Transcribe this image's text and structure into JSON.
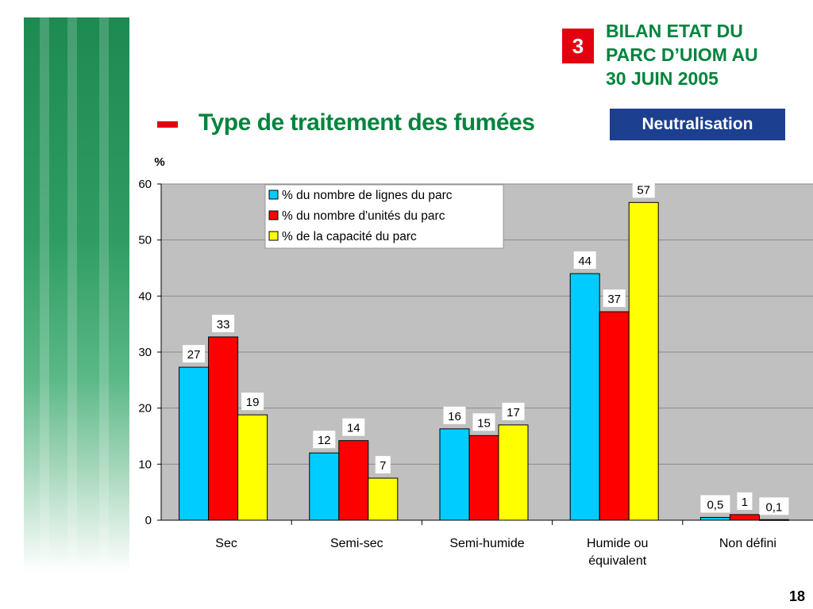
{
  "header": {
    "section_number": "3",
    "section_title_lines": [
      "BILAN ETAT DU",
      "PARC D’UIOM AU",
      "30 JUIN 2005"
    ],
    "page_title": "Type de traitement des fumées",
    "badge": "Neutralisation",
    "page_number": "18"
  },
  "colors": {
    "green": "#00843d",
    "red_accent": "#e3000f",
    "badge_blue": "#1c3f8f",
    "plot_bg": "#c0c0c0"
  },
  "chart_data": {
    "type": "bar",
    "ylabel": "%",
    "ylim": [
      0,
      60
    ],
    "yticks": [
      0,
      10,
      20,
      30,
      40,
      50,
      60
    ],
    "grid": true,
    "legend_position": "top-center",
    "categories": [
      "Sec",
      "Semi-sec",
      "Semi-humide",
      "Humide ou|équivalent",
      "Non défini"
    ],
    "series": [
      {
        "name": "% du nombre de lignes du parc",
        "color": "#00ccff",
        "values": [
          27.3,
          12,
          16.3,
          44,
          0.5
        ],
        "labels": [
          "27",
          "12",
          "16",
          "44",
          "0,5"
        ]
      },
      {
        "name": "% du nombre d'unités du parc",
        "color": "#ff0000",
        "values": [
          32.7,
          14.2,
          15.1,
          37.2,
          1
        ],
        "labels": [
          "33",
          "14",
          "15",
          "37",
          "1"
        ]
      },
      {
        "name": "% de la capacité du parc",
        "color": "#ffff00",
        "values": [
          18.8,
          7.5,
          17,
          56.7,
          0.1
        ],
        "labels": [
          "19",
          "7",
          "17",
          "57",
          "0,1"
        ]
      }
    ]
  }
}
